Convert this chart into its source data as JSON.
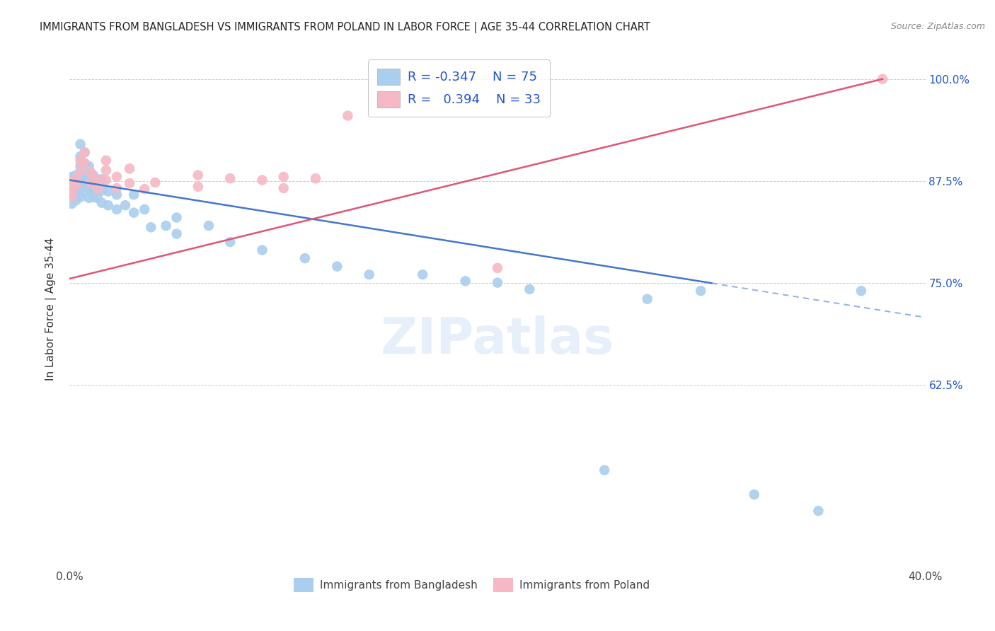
{
  "title": "IMMIGRANTS FROM BANGLADESH VS IMMIGRANTS FROM POLAND IN LABOR FORCE | AGE 35-44 CORRELATION CHART",
  "source": "Source: ZipAtlas.com",
  "ylabel": "In Labor Force | Age 35-44",
  "xlim": [
    0.0,
    0.4
  ],
  "ylim": [
    0.4,
    1.035
  ],
  "ytick_positions": [
    0.625,
    0.75,
    0.875,
    1.0
  ],
  "ytick_labels": [
    "62.5%",
    "75.0%",
    "87.5%",
    "100.0%"
  ],
  "xticks": [
    0.0,
    0.1,
    0.2,
    0.3,
    0.4
  ],
  "xtick_labels": [
    "0.0%",
    "",
    "",
    "",
    "40.0%"
  ],
  "bangladesh_color": "#aacfee",
  "poland_color": "#f5b8c4",
  "bangladesh_line_color": "#4477cc",
  "poland_line_color": "#e05575",
  "background_color": "#ffffff",
  "grid_color": "#cccccc",
  "watermark": "ZIPatlas",
  "bd_x": [
    0.001,
    0.001,
    0.001,
    0.001,
    0.001,
    0.001,
    0.001,
    0.001,
    0.003,
    0.003,
    0.003,
    0.003,
    0.003,
    0.003,
    0.005,
    0.005,
    0.005,
    0.005,
    0.005,
    0.005,
    0.005,
    0.007,
    0.007,
    0.007,
    0.007,
    0.007,
    0.009,
    0.009,
    0.009,
    0.009,
    0.009,
    0.011,
    0.011,
    0.011,
    0.011,
    0.013,
    0.013,
    0.013,
    0.015,
    0.015,
    0.015,
    0.018,
    0.018,
    0.022,
    0.022,
    0.026,
    0.03,
    0.03,
    0.035,
    0.038,
    0.045,
    0.05,
    0.05,
    0.065,
    0.075,
    0.09,
    0.11,
    0.125,
    0.14,
    0.165,
    0.185,
    0.2,
    0.215,
    0.25,
    0.27,
    0.295,
    0.32,
    0.35,
    0.37
  ],
  "bd_y": [
    0.88,
    0.877,
    0.874,
    0.87,
    0.866,
    0.86,
    0.855,
    0.847,
    0.882,
    0.876,
    0.87,
    0.865,
    0.858,
    0.851,
    0.92,
    0.905,
    0.893,
    0.882,
    0.875,
    0.867,
    0.855,
    0.91,
    0.896,
    0.882,
    0.873,
    0.862,
    0.893,
    0.882,
    0.875,
    0.866,
    0.854,
    0.882,
    0.875,
    0.865,
    0.855,
    0.877,
    0.866,
    0.854,
    0.877,
    0.863,
    0.848,
    0.862,
    0.845,
    0.858,
    0.84,
    0.845,
    0.858,
    0.836,
    0.84,
    0.818,
    0.82,
    0.83,
    0.81,
    0.82,
    0.8,
    0.79,
    0.78,
    0.77,
    0.76,
    0.76,
    0.752,
    0.75,
    0.742,
    0.52,
    0.73,
    0.74,
    0.49,
    0.47,
    0.74
  ],
  "pl_x": [
    0.001,
    0.001,
    0.001,
    0.001,
    0.003,
    0.003,
    0.005,
    0.005,
    0.007,
    0.007,
    0.01,
    0.01,
    0.013,
    0.013,
    0.017,
    0.017,
    0.017,
    0.022,
    0.022,
    0.028,
    0.028,
    0.035,
    0.04,
    0.06,
    0.06,
    0.075,
    0.09,
    0.1,
    0.1,
    0.115,
    0.13,
    0.2,
    0.38
  ],
  "pl_y": [
    0.875,
    0.868,
    0.862,
    0.855,
    0.878,
    0.87,
    0.9,
    0.887,
    0.91,
    0.897,
    0.885,
    0.873,
    0.877,
    0.865,
    0.9,
    0.888,
    0.876,
    0.88,
    0.866,
    0.89,
    0.872,
    0.865,
    0.873,
    0.882,
    0.868,
    0.878,
    0.876,
    0.88,
    0.866,
    0.878,
    0.955,
    0.768,
    1.0
  ]
}
